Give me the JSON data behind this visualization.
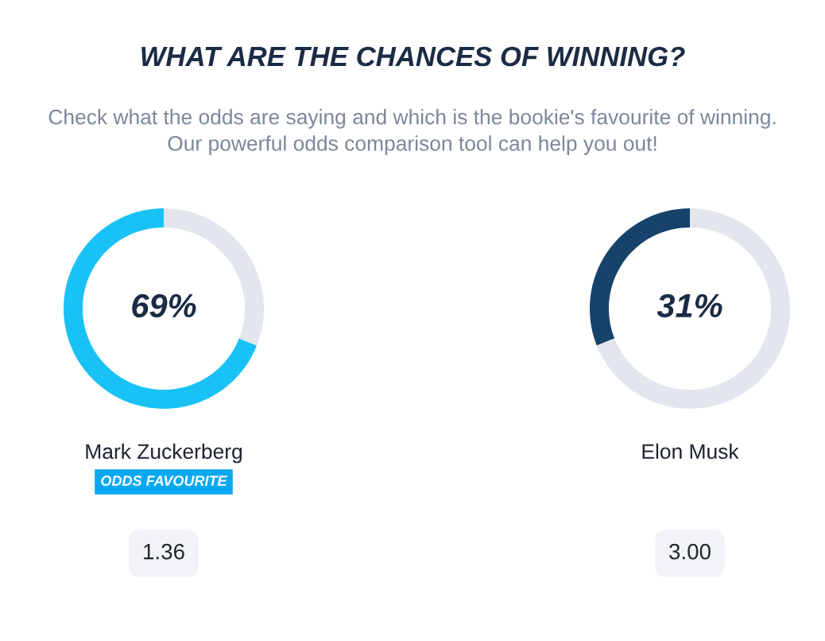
{
  "chart_data": [
    {
      "type": "other",
      "title": "WHAT ARE THE CHANCES OF WINNING?",
      "subtitle": "Check what the odds are saying and which is the bookie's favourite of winning.\nOur powerful odds comparison tool can help you out!"
    },
    {
      "type": "donut",
      "categories": [
        null,
        null
      ],
      "values": [
        69,
        31
      ],
      "colors": [
        "#18c2f6",
        "#e3e6ec"
      ],
      "xlabel": "Mark Zuckerberg",
      "annotations": [
        "69%",
        "ODDS FAVOURITE",
        "1.36"
      ]
    },
    {
      "type": "donut",
      "categories": [
        null,
        null
      ],
      "values": [
        31,
        69
      ],
      "colors": [
        "#17426a",
        "#e3e6ec"
      ],
      "xlabel": "Elon Musk",
      "annotations": [
        "31%",
        "3.00"
      ]
    }
  ]
}
